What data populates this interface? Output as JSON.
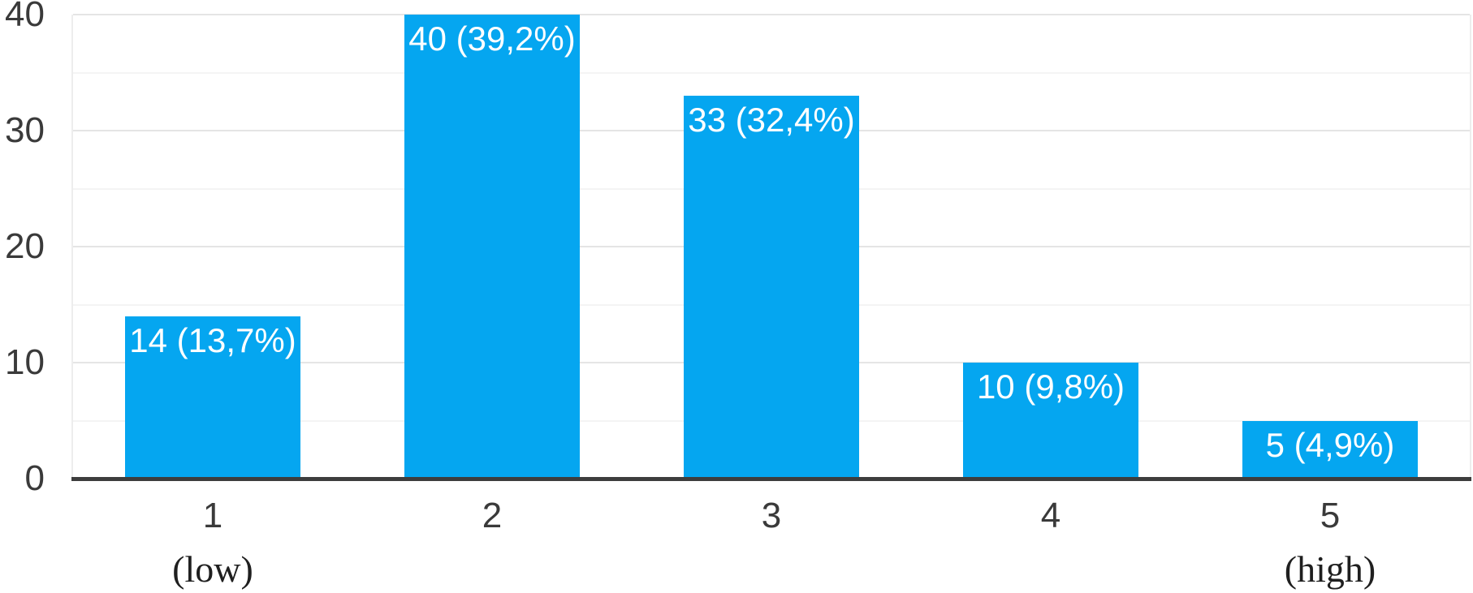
{
  "chart_data": {
    "type": "bar",
    "title": "",
    "xlabel": "",
    "ylabel": "",
    "categories": [
      "1",
      "2",
      "3",
      "4",
      "5"
    ],
    "values": [
      14,
      40,
      33,
      10,
      5
    ],
    "bar_labels": [
      "14 (13,7%)",
      "40 (39,2%)",
      "33 (32,4%)",
      "10 (9,8%)",
      "5 (4,9%)"
    ],
    "x_sub_labels": [
      "(low)",
      "",
      "",
      "",
      "(high)"
    ],
    "y_ticks": [
      0,
      10,
      20,
      30,
      40
    ],
    "ylim": [
      0,
      40
    ],
    "grid_minor_step": 5,
    "grid_major_step": 10,
    "legend_position": "none",
    "grid_on": true,
    "colors": {
      "bar": "#05a6f0",
      "bar_label_text": "#ffffff",
      "axis_line": "#3d3d3d",
      "tick_text": "#3a3a3a",
      "sub_label_text": "#1f1f1f",
      "grid_major": "#e5e5e5",
      "grid_minor": "#f4f4f4",
      "plot_border": "#ededed",
      "background": "#ffffff"
    }
  }
}
